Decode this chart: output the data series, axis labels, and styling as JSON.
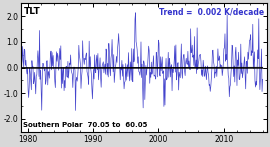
{
  "title_left": "TLT",
  "title_right": "Trend =  0.002 K/decade",
  "title_right_color": "#3333cc",
  "xlabel_bottom": "Southern Polar  70.05 to  60.05",
  "ylim": [
    -2.5,
    2.5
  ],
  "yticks": [
    -2.0,
    -1.0,
    0.0,
    1.0,
    2.0
  ],
  "xlim": [
    1979.0,
    2016.5
  ],
  "xticks": [
    1980,
    1990,
    2000,
    2010
  ],
  "line_color": "#4444cc",
  "bg_color": "#ffffff",
  "fig_bg_color": "#d8d8d8",
  "x_start": 1979.0,
  "x_end": 2015.9,
  "n_points": 444,
  "trend_slope": 0.002,
  "seed": 42
}
